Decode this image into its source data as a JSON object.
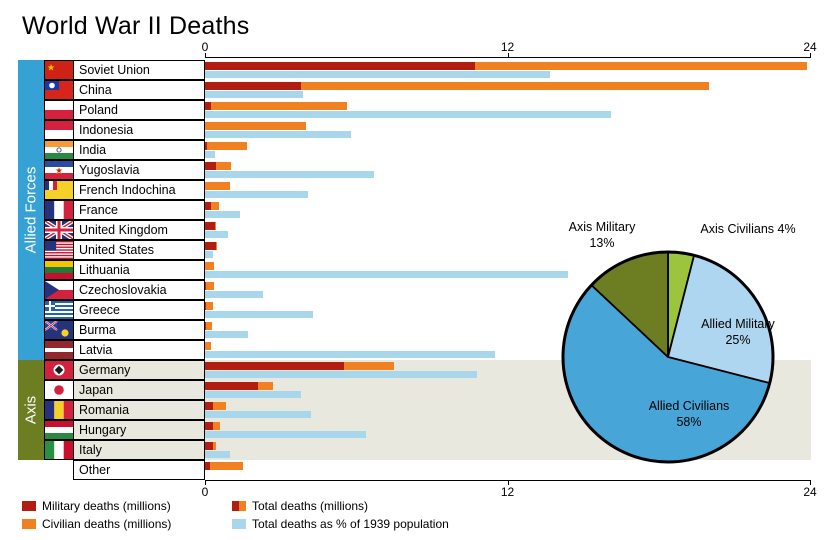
{
  "title": "World War II Deaths",
  "axis": {
    "ticks": [
      "0",
      "12",
      "24"
    ]
  },
  "groups": [
    {
      "label": "Allied Forces",
      "color": "#35a1d5",
      "count": 15
    },
    {
      "label": "Axis",
      "color": "#6c7d22",
      "count": 5
    }
  ],
  "colors": {
    "military": "#b21d12",
    "civilian": "#f08123",
    "percent": "#a8d7ec",
    "axis_row_bg": "#e9e8df"
  },
  "legend": [
    {
      "label": "Military deaths (millions)",
      "swatch": "military"
    },
    {
      "label": "Civilian deaths (millions)",
      "swatch": "civilian"
    },
    {
      "label": "Total deaths (millions)",
      "swatch": "total"
    },
    {
      "label": "Total deaths as % of 1939 population",
      "swatch": "percent"
    }
  ],
  "chart_data": [
    {
      "type": "bar",
      "title": "World War II Deaths",
      "orientation": "horizontal",
      "x_max": 24,
      "x_ticks": [
        0,
        12,
        24
      ],
      "note": "Top bar per country = total deaths in millions (military stacked with civilian); lower light-blue bar = total deaths as % of 1939 population",
      "series": [
        {
          "name": "Military deaths (millions)",
          "color": "#b21d12"
        },
        {
          "name": "Civilian deaths (millions)",
          "color": "#f08123"
        },
        {
          "name": "Total deaths as % of 1939 population",
          "color": "#a8d7ec"
        }
      ],
      "rows": [
        {
          "name": "Soviet Union",
          "group": "allied",
          "flag": "soviet-union",
          "military": 10.7,
          "civilian": 13.2,
          "percent": 13.7
        },
        {
          "name": "China",
          "group": "allied",
          "flag": "china",
          "military": 3.8,
          "civilian": 16.2,
          "percent": 3.9
        },
        {
          "name": "Poland",
          "group": "allied",
          "flag": "poland",
          "military": 0.24,
          "civilian": 5.38,
          "percent": 16.1
        },
        {
          "name": "Indonesia",
          "group": "allied",
          "flag": "indonesia",
          "military": 0,
          "civilian": 4.0,
          "percent": 5.8
        },
        {
          "name": "India",
          "group": "allied",
          "flag": "india",
          "military": 0.09,
          "civilian": 1.58,
          "percent": 0.4
        },
        {
          "name": "Yugoslavia",
          "group": "allied",
          "flag": "yugoslavia",
          "military": 0.45,
          "civilian": 0.58,
          "percent": 6.7
        },
        {
          "name": "French Indochina",
          "group": "allied",
          "flag": "french-indochina",
          "military": 0,
          "civilian": 1.0,
          "percent": 4.1
        },
        {
          "name": "France",
          "group": "allied",
          "flag": "france",
          "military": 0.22,
          "civilian": 0.35,
          "percent": 1.4
        },
        {
          "name": "United Kingdom",
          "group": "allied",
          "flag": "united-kingdom",
          "military": 0.38,
          "civilian": 0.07,
          "percent": 0.9
        },
        {
          "name": "United States",
          "group": "allied",
          "flag": "united-states",
          "military": 0.42,
          "civilian": 0.01,
          "percent": 0.3
        },
        {
          "name": "Lithuania",
          "group": "allied",
          "flag": "lithuania",
          "military": 0,
          "civilian": 0.37,
          "percent": 14.4
        },
        {
          "name": "Czechoslovakia",
          "group": "allied",
          "flag": "czechoslovakia",
          "military": 0.03,
          "civilian": 0.32,
          "percent": 2.3
        },
        {
          "name": "Greece",
          "group": "allied",
          "flag": "greece",
          "military": 0.02,
          "civilian": 0.28,
          "percent": 4.3
        },
        {
          "name": "Burma",
          "group": "allied",
          "flag": "burma",
          "military": 0.02,
          "civilian": 0.25,
          "percent": 1.7
        },
        {
          "name": "Latvia",
          "group": "allied",
          "flag": "latvia",
          "military": 0,
          "civilian": 0.23,
          "percent": 11.5
        },
        {
          "name": "Germany",
          "group": "axis",
          "flag": "germany",
          "military": 5.5,
          "civilian": 2.0,
          "percent": 10.8
        },
        {
          "name": "Japan",
          "group": "axis",
          "flag": "japan",
          "military": 2.1,
          "civilian": 0.6,
          "percent": 3.8
        },
        {
          "name": "Romania",
          "group": "axis",
          "flag": "romania",
          "military": 0.3,
          "civilian": 0.53,
          "percent": 4.2
        },
        {
          "name": "Hungary",
          "group": "axis",
          "flag": "hungary",
          "military": 0.3,
          "civilian": 0.28,
          "percent": 6.4
        },
        {
          "name": "Italy",
          "group": "axis",
          "flag": "italy",
          "military": 0.33,
          "civilian": 0.12,
          "percent": 1.0
        },
        {
          "name": "Other",
          "group": "other",
          "flag": "none",
          "military": 0.2,
          "civilian": 1.3,
          "percent": 0
        }
      ]
    },
    {
      "type": "pie",
      "legend_position": "labels-on-chart",
      "slices": [
        {
          "label": "Axis Civilians",
          "value": 4,
          "value_label": "4%",
          "color": "#9cc43c"
        },
        {
          "label": "Allied Military",
          "value": 25,
          "value_label": "25%",
          "color": "#aed6f0"
        },
        {
          "label": "Allied Civilians",
          "value": 58,
          "value_label": "58%",
          "color": "#48a5d8"
        },
        {
          "label": "Axis Military",
          "value": 13,
          "value_label": "13%",
          "color": "#6c7d22"
        }
      ]
    }
  ]
}
